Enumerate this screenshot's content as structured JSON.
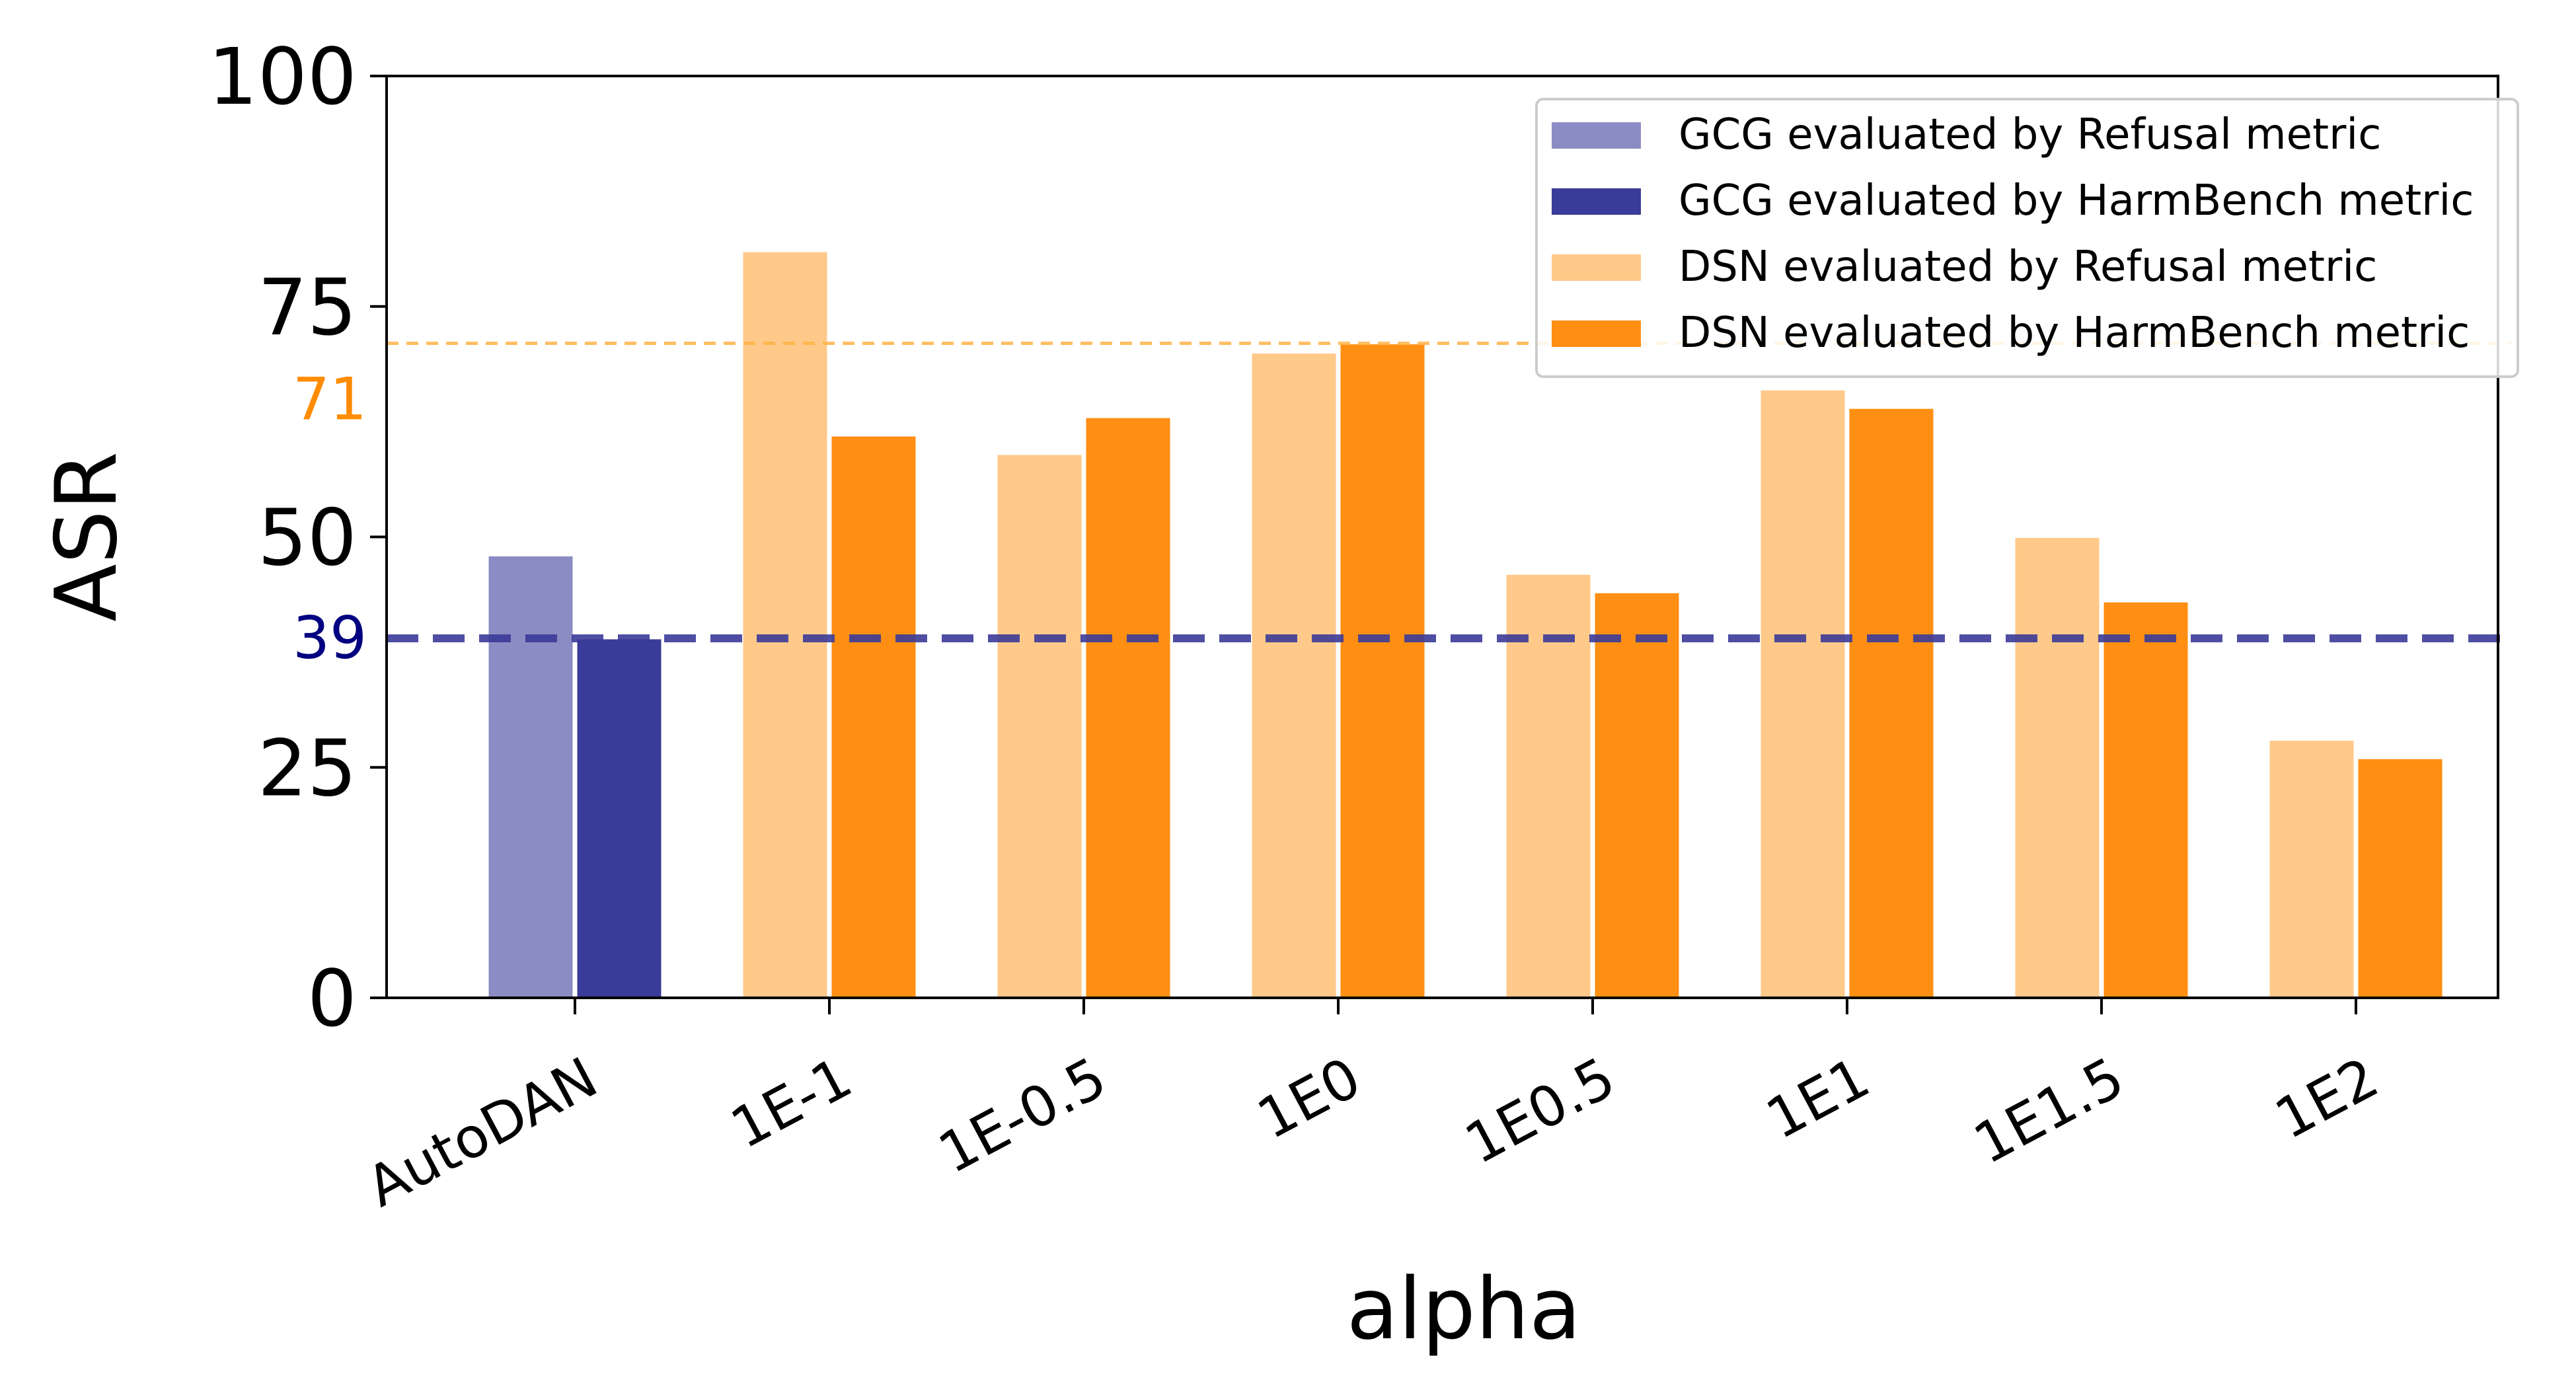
{
  "chart_data": {
    "type": "bar",
    "xlabel": "alpha",
    "ylabel": "ASR",
    "ylim": [
      0,
      100
    ],
    "yticks": [
      0,
      25,
      50,
      75,
      100
    ],
    "categories": [
      "AutoDAN",
      "1E-1",
      "1E-0.5",
      "1E0",
      "1E0.5",
      "1E1",
      "1E1.5",
      "1E2"
    ],
    "series": [
      {
        "name": "Refusal metric",
        "values": [
          48,
          81,
          59,
          70,
          46,
          66,
          50,
          28
        ]
      },
      {
        "name": "HarmBench metric",
        "values": [
          39,
          61,
          63,
          71,
          44,
          64,
          43,
          26
        ]
      }
    ],
    "bar_colors": {
      "baseline_refusal": "#8c8cc4",
      "baseline_harmbench": "#3b3b99",
      "dsn_refusal": "#ffc98a",
      "dsn_harmbench": "#ff8f12"
    },
    "reference_lines": [
      {
        "value": 39,
        "label": "39",
        "color": "#3b3b99",
        "label_color": "#000080",
        "style": "dashed-thick"
      },
      {
        "value": 71,
        "label": "71",
        "color": "#ffb347",
        "label_color": "#ff8c00",
        "style": "dashed-thin"
      }
    ],
    "legend": {
      "position": "top-right",
      "entries": [
        {
          "label": "GCG evaluated by Refusal metric",
          "color": "#8c8cc4"
        },
        {
          "label": "GCG evaluated by HarmBench metric",
          "color": "#3b3b99"
        },
        {
          "label": "DSN evaluated by Refusal metric",
          "color": "#ffc98a"
        },
        {
          "label": "DSN evaluated by HarmBench metric",
          "color": "#ff8f12"
        }
      ]
    }
  }
}
